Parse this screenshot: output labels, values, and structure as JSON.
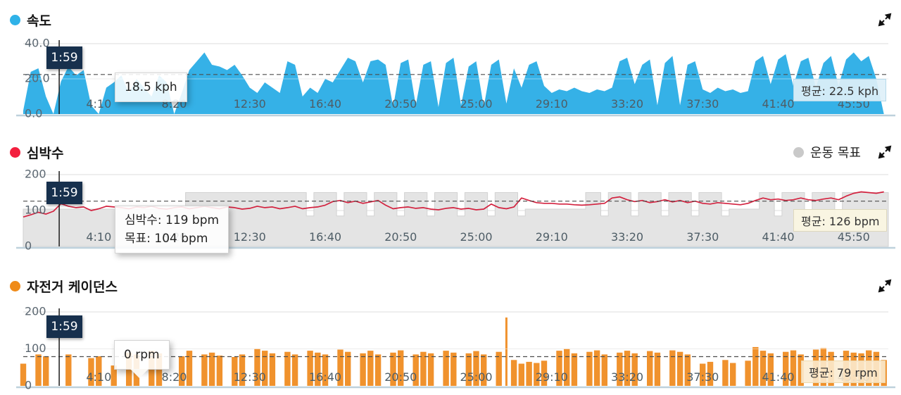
{
  "panels": [
    {
      "title": "속도",
      "dot_color": "#2fb2e8",
      "cursor_time": "1:59",
      "tooltip": {
        "line1": "18.5 kph"
      },
      "avg_label": "평균: 22.5 kph",
      "y_ticks": [
        "40.0",
        "20.0",
        "0.0"
      ]
    },
    {
      "title": "심박수",
      "dot_color": "#f31f3e",
      "legend": {
        "label": "운동 목표",
        "dot_color": "#c9c9c9"
      },
      "cursor_time": "1:59",
      "tooltip": {
        "line1": "심박수: 119 bpm",
        "line2": "목표: 104 bpm"
      },
      "avg_label": "평균: 126 bpm",
      "y_ticks": [
        "200",
        "100",
        "0"
      ]
    },
    {
      "title": "자전거 케이던스",
      "dot_color": "#ef8b19",
      "cursor_time": "1:59",
      "tooltip": {
        "line1": "0 rpm"
      },
      "avg_label": "평균: 79 rpm",
      "y_ticks": [
        "200",
        "100",
        "0"
      ]
    }
  ],
  "x_ticks": [
    "4:10",
    "8:20",
    "12:30",
    "16:40",
    "20:50",
    "25:00",
    "29:10",
    "33:20",
    "37:30",
    "41:40",
    "45:50"
  ],
  "chart_data": [
    {
      "type": "area",
      "title": "속도",
      "unit": "kph",
      "color": "#35b1e7",
      "average": 22.5,
      "ylim": [
        0,
        40
      ],
      "yticks": [
        0,
        20,
        40
      ],
      "sample_interval_s": 25,
      "cursor": {
        "time": "1:59",
        "value_kph": 18.5
      },
      "values": [
        2,
        24,
        26,
        10,
        0,
        18.5,
        27,
        22,
        25,
        5,
        0,
        15,
        18,
        22,
        12,
        20,
        15,
        10,
        22,
        18,
        0,
        12,
        25,
        30,
        35,
        28,
        27,
        25,
        28,
        22,
        15,
        12,
        18,
        15,
        12,
        30,
        28,
        10,
        15,
        12,
        20,
        18,
        25,
        32,
        30,
        18,
        30,
        31,
        28,
        4,
        29,
        31,
        5,
        28,
        30,
        4,
        29,
        32,
        5,
        27,
        30,
        4,
        28,
        31,
        6,
        26,
        15,
        28,
        30,
        16,
        12,
        14,
        13,
        15,
        13,
        12,
        14,
        13,
        15,
        30,
        32,
        17,
        28,
        31,
        5,
        29,
        33,
        5,
        28,
        30,
        14,
        12,
        15,
        13,
        14,
        12,
        13,
        30,
        33,
        17,
        31,
        34,
        16,
        30,
        32,
        15,
        29,
        33,
        16,
        31,
        35,
        30,
        33,
        20,
        0
      ]
    },
    {
      "type": "line",
      "title": "심박수",
      "unit": "bpm",
      "color": "#d3223f",
      "average": 126,
      "ylim": [
        0,
        200
      ],
      "yticks": [
        0,
        100,
        200
      ],
      "sample_interval_s": 25,
      "cursor": {
        "time": "1:59",
        "value_bpm": 119,
        "target_bpm": 104
      },
      "values": [
        82,
        88,
        95,
        90,
        98,
        119,
        112,
        108,
        110,
        100,
        105,
        112,
        110,
        108,
        105,
        110,
        108,
        112,
        106,
        104,
        108,
        110,
        105,
        108,
        112,
        108,
        105,
        110,
        108,
        104,
        106,
        112,
        108,
        110,
        105,
        108,
        112,
        105,
        108,
        110,
        115,
        125,
        128,
        122,
        126,
        120,
        124,
        128,
        115,
        105,
        108,
        110,
        106,
        108,
        104,
        102,
        106,
        108,
        104,
        106,
        102,
        104,
        118,
        108,
        105,
        110,
        135,
        128,
        122,
        120,
        120,
        118,
        118,
        116,
        115,
        116,
        118,
        120,
        135,
        138,
        130,
        125,
        128,
        122,
        125,
        130,
        124,
        128,
        122,
        126,
        120,
        118,
        122,
        120,
        118,
        116,
        120,
        128,
        135,
        130,
        132,
        128,
        130,
        135,
        130,
        128,
        132,
        135,
        130,
        140,
        148,
        152,
        150,
        148,
        152
      ],
      "target": {
        "name": "운동 목표",
        "color": "#e4e4e4",
        "values": [
          104,
          104,
          104,
          104,
          104,
          104,
          104,
          104,
          104,
          104,
          104,
          104,
          104,
          104,
          104,
          104,
          104,
          104,
          104,
          104,
          104,
          104,
          150,
          150,
          150,
          150,
          150,
          150,
          150,
          150,
          150,
          150,
          150,
          150,
          150,
          150,
          150,
          150,
          85,
          150,
          150,
          150,
          85,
          150,
          150,
          150,
          85,
          150,
          150,
          150,
          85,
          150,
          150,
          150,
          85,
          150,
          150,
          150,
          85,
          150,
          150,
          150,
          85,
          150,
          150,
          150,
          85,
          104,
          104,
          104,
          104,
          104,
          104,
          104,
          104,
          150,
          150,
          85,
          150,
          150,
          150,
          85,
          150,
          150,
          150,
          85,
          150,
          150,
          150,
          85,
          150,
          150,
          150,
          85,
          104,
          104,
          104,
          104,
          150,
          150,
          85,
          150,
          150,
          150,
          85,
          150,
          150,
          150,
          85,
          150,
          150,
          150,
          150,
          150,
          150
        ]
      }
    },
    {
      "type": "bar",
      "title": "자전거 케이던스",
      "unit": "rpm",
      "color": "#f0922d",
      "average": 79,
      "ylim": [
        0,
        200
      ],
      "yticks": [
        0,
        100,
        200
      ],
      "sample_interval_s": 25,
      "cursor": {
        "time": "1:59",
        "value_rpm": 0
      },
      "values": [
        60,
        0,
        85,
        80,
        0,
        0,
        85,
        0,
        0,
        75,
        80,
        0,
        55,
        0,
        90,
        85,
        0,
        95,
        88,
        0,
        0,
        80,
        95,
        0,
        85,
        90,
        82,
        0,
        78,
        85,
        0,
        100,
        95,
        88,
        0,
        92,
        85,
        0,
        95,
        90,
        85,
        0,
        98,
        92,
        0,
        88,
        95,
        85,
        0,
        90,
        96,
        0,
        85,
        92,
        88,
        0,
        95,
        90,
        0,
        88,
        94,
        85,
        0,
        92,
        185,
        70,
        60,
        65,
        62,
        68,
        0,
        95,
        100,
        88,
        0,
        92,
        96,
        85,
        0,
        90,
        95,
        88,
        0,
        94,
        90,
        0,
        96,
        92,
        85,
        0,
        60,
        65,
        0,
        70,
        62,
        0,
        68,
        105,
        95,
        88,
        0,
        92,
        96,
        85,
        0,
        98,
        102,
        92,
        0,
        95,
        90,
        88,
        96,
        92,
        70
      ]
    }
  ]
}
